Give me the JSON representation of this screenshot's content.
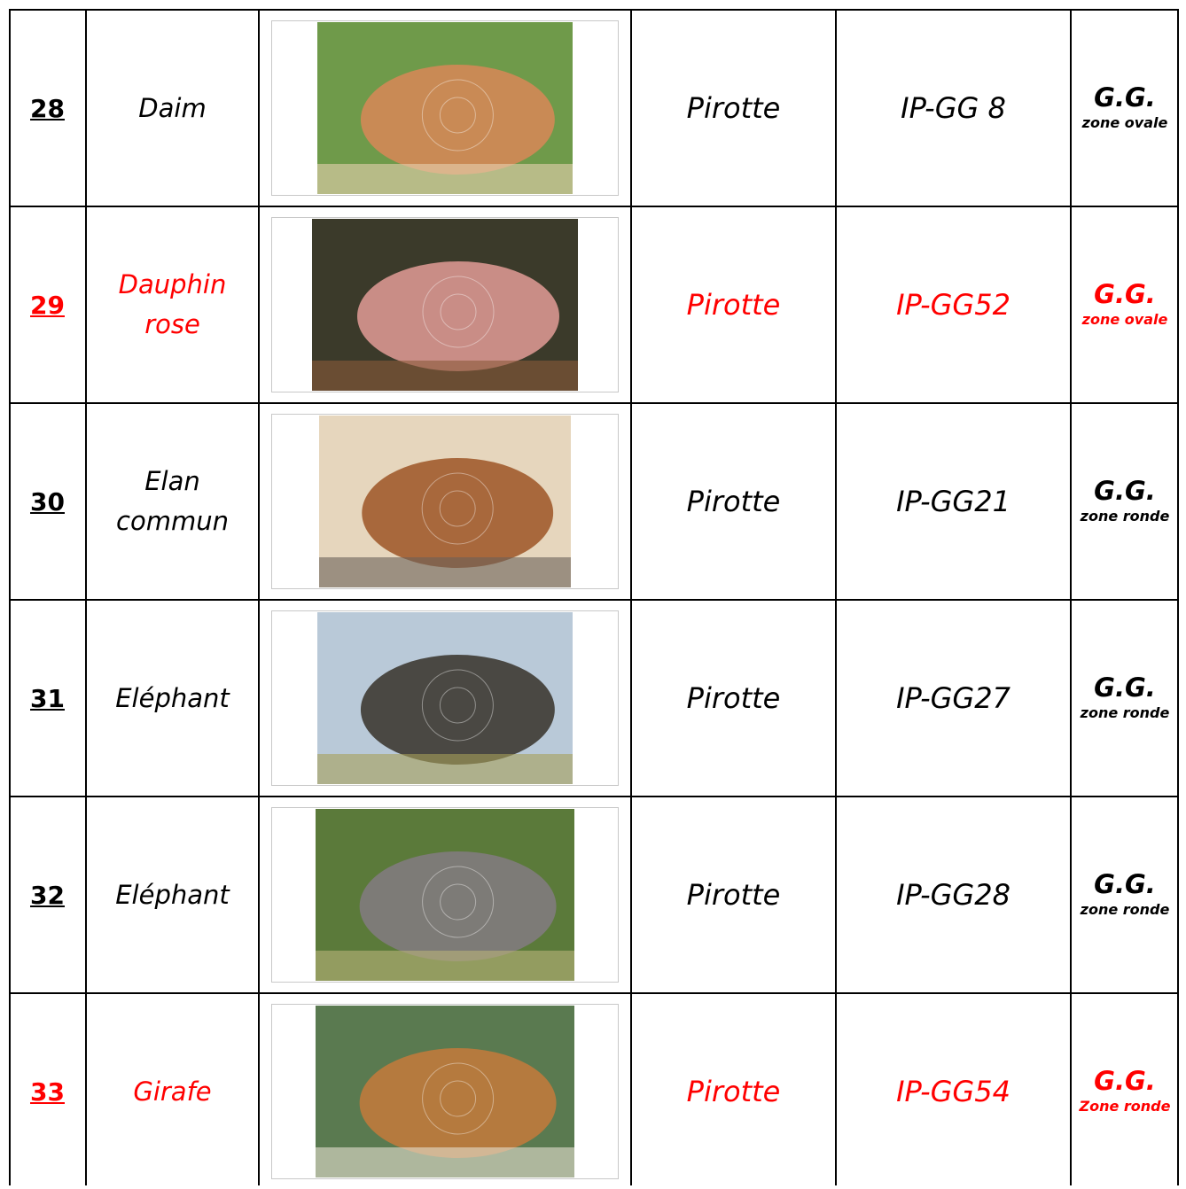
{
  "table": {
    "rows": [
      {
        "number": "28",
        "name_lines": [
          "Daim"
        ],
        "type": "Pirotte",
        "code": "IP-GG 8",
        "grade": "G.G.",
        "zone": "zone ovale",
        "highlight": false
      },
      {
        "number": "29",
        "name_lines": [
          "Dauphin",
          "rose"
        ],
        "type": "Pirotte",
        "code": "IP-GG52",
        "grade": "G.G.",
        "zone": "zone ovale",
        "highlight": true
      },
      {
        "number": "30",
        "name_lines": [
          "Elan",
          "commun"
        ],
        "type": "Pirotte",
        "code": "IP-GG21",
        "grade": "G.G.",
        "zone": "zone ronde",
        "highlight": false
      },
      {
        "number": "31",
        "name_lines": [
          "Eléphant"
        ],
        "type": "Pirotte",
        "code": "IP-GG27",
        "grade": "G.G.",
        "zone": "zone ronde",
        "highlight": false
      },
      {
        "number": "32",
        "name_lines": [
          "Eléphant"
        ],
        "type": "Pirotte",
        "code": "IP-GG28",
        "grade": "G.G.",
        "zone": "zone ronde",
        "highlight": false
      },
      {
        "number": "33",
        "name_lines": [
          "Girafe"
        ],
        "type": "Pirotte",
        "code": "IP-GG54",
        "grade": "G.G.",
        "zone": "Zone ronde",
        "highlight": true
      }
    ]
  }
}
